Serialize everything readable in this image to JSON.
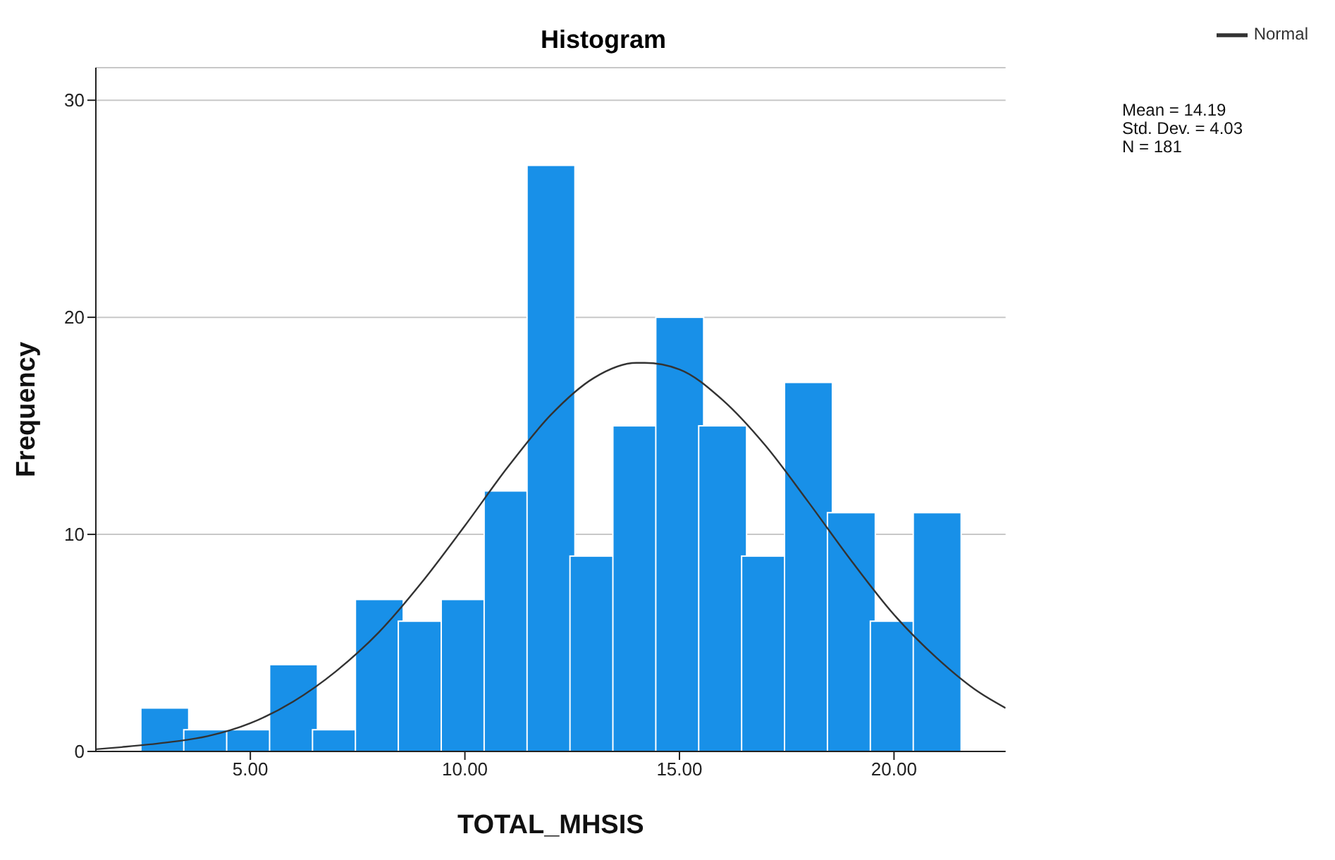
{
  "chart_data": {
    "type": "histogram",
    "title": "Histogram",
    "xlabel": "TOTAL_MHSIS",
    "ylabel": "Frequency",
    "bins": [
      2.5,
      3.5,
      4.5,
      5.5,
      6.5,
      7.5,
      8.5,
      9.5,
      10.5,
      11.5,
      12.5,
      13.5,
      14.5,
      15.5,
      16.5,
      17.5,
      18.5,
      19.5,
      20.5,
      21.5
    ],
    "values": [
      2,
      1,
      1,
      4,
      1,
      7,
      6,
      7,
      12,
      27,
      9,
      15,
      20,
      15,
      9,
      17,
      11,
      6,
      11
    ],
    "color": "#1890e8",
    "series": [
      {
        "type": "line",
        "name": "Normal",
        "color": "#333333",
        "x": [
          1.4,
          2,
          3,
          4,
          5,
          6,
          7,
          8,
          9,
          10,
          11,
          12,
          13,
          14,
          14.19,
          15,
          16,
          17,
          18,
          19,
          20,
          21,
          22,
          22.6
        ],
        "values": [
          0.1,
          0.2,
          0.4,
          0.7,
          1.3,
          2.3,
          3.7,
          5.5,
          7.8,
          10.4,
          13.1,
          15.5,
          17.2,
          17.9,
          17.9,
          17.6,
          16.2,
          14.1,
          11.5,
          8.8,
          6.3,
          4.3,
          2.7,
          2.0
        ]
      }
    ],
    "xlim": [
      1.4,
      22.6
    ],
    "ylim": [
      0,
      31.5
    ],
    "xticks": [
      {
        "value": 5,
        "label": "5.00"
      },
      {
        "value": 10,
        "label": "10.00"
      },
      {
        "value": 15,
        "label": "15.00"
      },
      {
        "value": 20,
        "label": "20.00"
      }
    ],
    "yticks": [
      0,
      10,
      20,
      30
    ],
    "grid": "y",
    "legend": "top right",
    "marker": "none",
    "annotations": [
      "Mean = 14.19",
      "Std. Dev. = 4.03",
      "N = 181"
    ]
  }
}
